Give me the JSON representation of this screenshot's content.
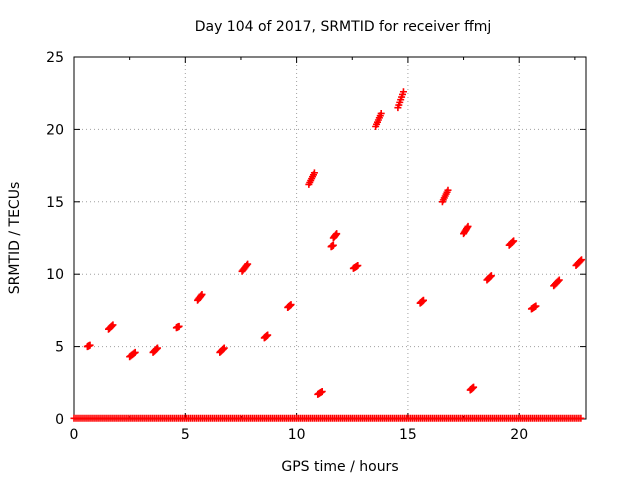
{
  "chart_data": {
    "type": "scatter",
    "title": "Day 104 of 2017, SRMTID for receiver ffmj",
    "xlabel": "GPS time / hours",
    "ylabel": "SRMTID / TECUs",
    "xlim": [
      0,
      23.0
    ],
    "ylim": [
      0,
      25
    ],
    "x_ticks": [
      "0",
      "5",
      "10",
      "15",
      "20"
    ],
    "y_ticks": [
      "0",
      "5",
      "10",
      "15",
      "20",
      "25"
    ],
    "grid": true,
    "marker": "+",
    "marker_color": "#ff0000",
    "series": [
      {
        "name": "SRMTID",
        "clusters": [
          {
            "x": [
              0.6,
              0.72
            ],
            "y": [
              5.0,
              5.1
            ]
          },
          {
            "x": [
              1.55,
              1.75
            ],
            "y": [
              6.2,
              6.5
            ]
          },
          {
            "x": [
              2.5,
              2.75
            ],
            "y": [
              4.3,
              4.6
            ]
          },
          {
            "x": [
              3.55,
              3.75
            ],
            "y": [
              4.6,
              4.9
            ]
          },
          {
            "x": [
              4.6,
              4.72
            ],
            "y": [
              6.3,
              6.4
            ]
          },
          {
            "x": [
              5.55,
              5.75
            ],
            "y": [
              8.2,
              8.6
            ]
          },
          {
            "x": [
              6.55,
              6.75
            ],
            "y": [
              4.6,
              4.9
            ]
          },
          {
            "x": [
              7.55,
              7.8
            ],
            "y": [
              10.2,
              10.7
            ]
          },
          {
            "x": [
              8.55,
              8.7
            ],
            "y": [
              5.6,
              5.8
            ]
          },
          {
            "x": [
              9.6,
              9.75
            ],
            "y": [
              7.7,
              7.9
            ]
          },
          {
            "x": [
              10.55,
              10.8
            ],
            "y": [
              16.2,
              17.0
            ]
          },
          {
            "x": [
              10.95,
              11.15
            ],
            "y": [
              1.7,
              1.9
            ]
          },
          {
            "x": [
              11.55,
              11.65
            ],
            "y": [
              11.9,
              12.0
            ]
          },
          {
            "x": [
              11.65,
              11.8
            ],
            "y": [
              12.5,
              12.8
            ]
          },
          {
            "x": [
              12.55,
              12.75
            ],
            "y": [
              10.4,
              10.6
            ]
          },
          {
            "x": [
              13.55,
              13.8
            ],
            "y": [
              20.2,
              21.1
            ]
          },
          {
            "x": [
              14.55,
              14.8
            ],
            "y": [
              21.5,
              22.6
            ]
          },
          {
            "x": [
              15.55,
              15.7
            ],
            "y": [
              8.0,
              8.2
            ]
          },
          {
            "x": [
              16.55,
              16.8
            ],
            "y": [
              15.0,
              15.8
            ]
          },
          {
            "x": [
              17.5,
              17.7
            ],
            "y": [
              12.8,
              13.3
            ]
          },
          {
            "x": [
              17.8,
              17.95
            ],
            "y": [
              2.0,
              2.2
            ]
          },
          {
            "x": [
              18.55,
              18.75
            ],
            "y": [
              9.6,
              9.9
            ]
          },
          {
            "x": [
              19.55,
              19.75
            ],
            "y": [
              12.0,
              12.3
            ]
          },
          {
            "x": [
              20.55,
              20.75
            ],
            "y": [
              7.6,
              7.8
            ]
          },
          {
            "x": [
              21.55,
              21.8
            ],
            "y": [
              9.2,
              9.6
            ]
          },
          {
            "x": [
              22.55,
              22.8
            ],
            "y": [
              10.6,
              11.0
            ]
          }
        ],
        "baseline": {
          "x_start": 0.0,
          "x_end": 22.8,
          "y": 0.05
        }
      }
    ]
  }
}
